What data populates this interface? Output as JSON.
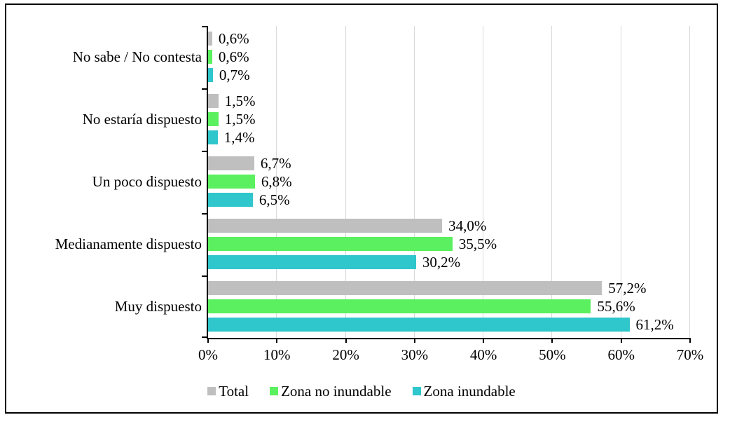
{
  "chart_data": {
    "type": "bar",
    "orientation": "horizontal",
    "categories": [
      "No sabe / No contesta",
      "No estaría dispuesto",
      "Un poco dispuesto",
      "Medianamente dispuesto",
      "Muy dispuesto"
    ],
    "series": [
      {
        "name": "Total",
        "color": "#BFBFBF",
        "values": [
          0.6,
          1.5,
          6.7,
          34.0,
          57.2
        ],
        "labels": [
          "0,6%",
          "1,5%",
          "6,7%",
          "34,0%",
          "57,2%"
        ]
      },
      {
        "name": "Zona no inundable",
        "color": "#5AF05F",
        "values": [
          0.6,
          1.5,
          6.8,
          35.5,
          55.6
        ],
        "labels": [
          "0,6%",
          "1,5%",
          "6,8%",
          "35,5%",
          "55,6%"
        ]
      },
      {
        "name": "Zona inundable",
        "color": "#2FC6CC",
        "values": [
          0.7,
          1.4,
          6.5,
          30.2,
          61.2
        ],
        "labels": [
          "0,7%",
          "1,4%",
          "6,5%",
          "30,2%",
          "61,2%"
        ]
      }
    ],
    "x_axis": {
      "min": 0,
      "max": 70,
      "tick_step": 10,
      "tick_labels": [
        "0%",
        "10%",
        "20%",
        "30%",
        "40%",
        "50%",
        "60%",
        "70%"
      ]
    },
    "legend": {
      "position": "bottom",
      "entries": [
        "Total",
        "Zona no inundable",
        "Zona inundable"
      ]
    },
    "grid": "vertical",
    "colors": {
      "gridline": "#D9D9D9",
      "axis": "#000000",
      "frame_border": "#000000",
      "background": "#FFFFFF"
    }
  }
}
